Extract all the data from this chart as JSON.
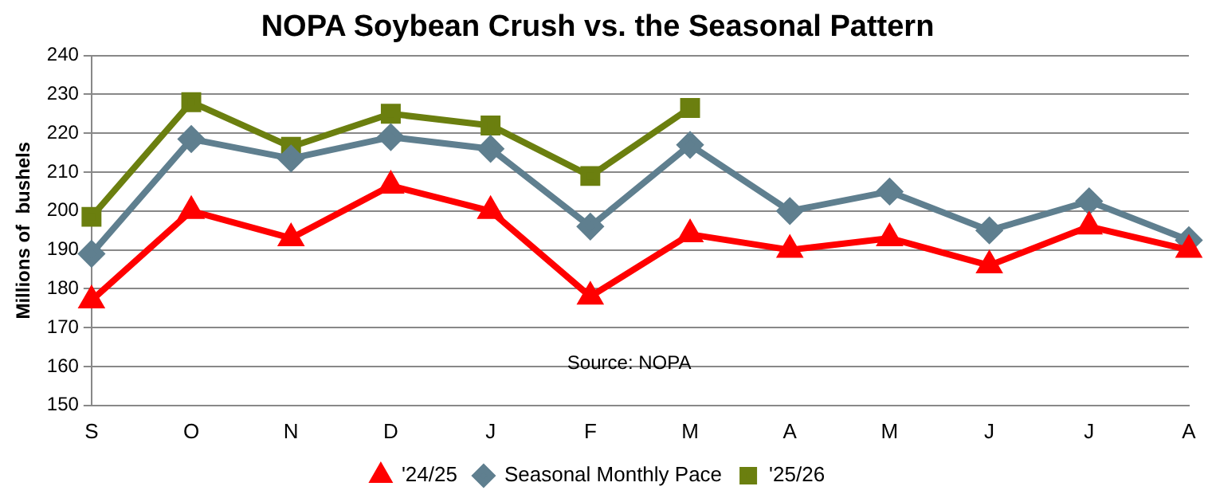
{
  "chart_data": {
    "type": "line",
    "title": "NOPA Soybean Crush vs. the Seasonal Pattern",
    "ylabel": "Millions of  bushels",
    "categories": [
      "S",
      "O",
      "N",
      "D",
      "J",
      "F",
      "M",
      "A",
      "M",
      "J",
      "J",
      "A"
    ],
    "series": [
      {
        "name": "'24/25",
        "color": "#ff0000",
        "marker": "triangle",
        "values": [
          177,
          200,
          193,
          206.5,
          200,
          178,
          194,
          190,
          193,
          186,
          196,
          190
        ]
      },
      {
        "name": "Seasonal Monthly Pace",
        "color": "#5f7f8f",
        "marker": "diamond",
        "values": [
          189,
          218.5,
          213.5,
          219,
          216,
          196,
          217,
          200,
          205,
          195,
          202.5,
          192.5
        ]
      },
      {
        "name": "'25/26",
        "color": "#6b7f0f",
        "marker": "square",
        "values": [
          198.5,
          228,
          216.5,
          225,
          222,
          209,
          226.5,
          null,
          null,
          null,
          null,
          null
        ]
      }
    ],
    "ylim": [
      150,
      240
    ],
    "yticks": [
      150,
      160,
      170,
      180,
      190,
      200,
      210,
      220,
      230,
      240
    ],
    "grid": "y",
    "legend": "bottom",
    "annotations": [
      "Source: NOPA"
    ]
  }
}
